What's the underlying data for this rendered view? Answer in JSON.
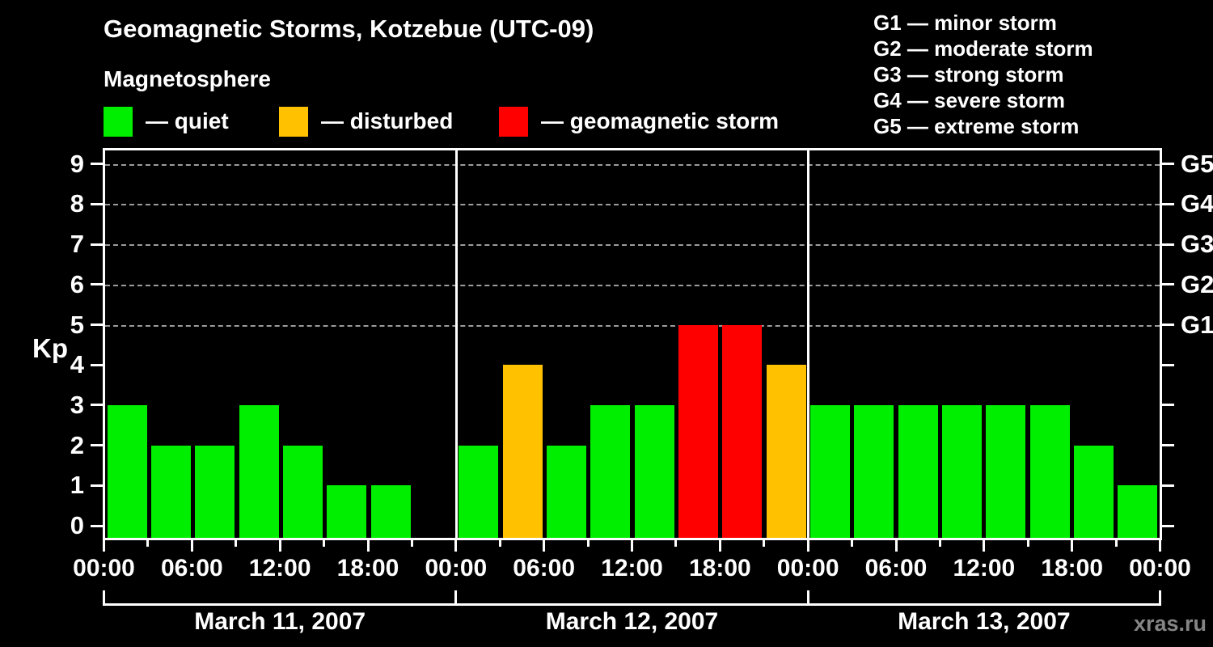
{
  "chart_data": {
    "type": "bar",
    "title": "Geomagnetic Storms, Kotzebue (UTC-09)",
    "subtitle": "Magnetosphere",
    "ylabel": "Kp",
    "ylim": [
      0,
      9
    ],
    "yticks": [
      0,
      1,
      2,
      3,
      4,
      5,
      6,
      7,
      8,
      9
    ],
    "gridline_values": [
      5,
      6,
      7,
      8,
      9
    ],
    "grid": "dashed horizontal lines at Kp 5-9 only",
    "legend_position": "top-left row",
    "legend": [
      {
        "status": "quiet",
        "label": "— quiet",
        "color": "#00ee00"
      },
      {
        "status": "disturbed",
        "label": "— disturbed",
        "color": "#ffc100"
      },
      {
        "status": "storm",
        "label": "— geomagnetic storm",
        "color": "#ff0000"
      }
    ],
    "g_scale_legend": [
      "G1 — minor storm",
      "G2 — moderate storm",
      "G3 — strong storm",
      "G4 — severe storm",
      "G5 — extreme storm"
    ],
    "right_axis": [
      {
        "value": 5,
        "label": "G1"
      },
      {
        "value": 6,
        "label": "G2"
      },
      {
        "value": 7,
        "label": "G3"
      },
      {
        "value": 8,
        "label": "G4"
      },
      {
        "value": 9,
        "label": "G5"
      }
    ],
    "interval_hours": 3,
    "time_tick_labels": [
      "00:00",
      "06:00",
      "12:00",
      "18:00"
    ],
    "closing_time_label": "00:00",
    "days": [
      {
        "date": "March 11, 2007",
        "kp": [
          3,
          2,
          2,
          3,
          2,
          1,
          1,
          0
        ],
        "status": [
          "quiet",
          "quiet",
          "quiet",
          "quiet",
          "quiet",
          "quiet",
          "quiet",
          "none"
        ]
      },
      {
        "date": "March 12, 2007",
        "kp": [
          2,
          4,
          2,
          3,
          3,
          5,
          5,
          4
        ],
        "status": [
          "quiet",
          "disturbed",
          "quiet",
          "quiet",
          "quiet",
          "storm",
          "storm",
          "disturbed"
        ]
      },
      {
        "date": "March 13, 2007",
        "kp": [
          3,
          3,
          3,
          3,
          3,
          3,
          2,
          1
        ],
        "status": [
          "quiet",
          "quiet",
          "quiet",
          "quiet",
          "quiet",
          "quiet",
          "quiet",
          "quiet"
        ]
      }
    ],
    "colors": {
      "background": "#000000",
      "text": "#ffffff",
      "quiet": "#00ee00",
      "disturbed": "#ffc100",
      "storm": "#ff0000",
      "grid": "#9c9c9c",
      "watermark": "#858585"
    }
  },
  "watermark": "xras.ru"
}
